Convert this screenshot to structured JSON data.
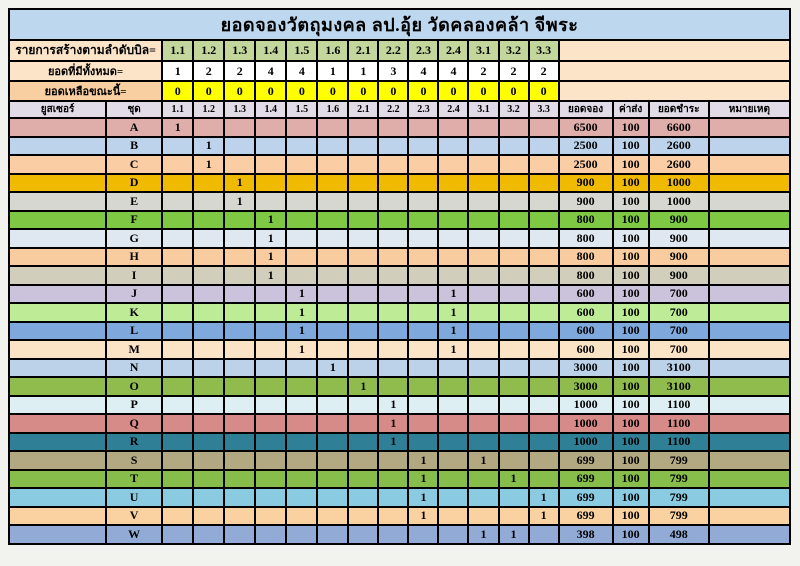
{
  "title": "ยอดจองวัตถุมงคล ลป.อุ้ย วัดคลองคล้า จีพระ",
  "summary": {
    "bill_order_label": "รายการสร้างตามลำดับบิล=",
    "bill_numbers": [
      "1.1",
      "1.2",
      "1.3",
      "1.4",
      "1.5",
      "1.6",
      "2.1",
      "2.2",
      "2.3",
      "2.4",
      "3.1",
      "3.2",
      "3.3"
    ],
    "stock_total_label": "ยอดที่มีทั้งหมด=",
    "stock_totals": [
      "1",
      "2",
      "2",
      "4",
      "4",
      "1",
      "1",
      "3",
      "4",
      "4",
      "2",
      "2",
      "2"
    ],
    "stock_remaining_label": "ยอดเหลือขณะนี้=",
    "stock_remaining": [
      "0",
      "0",
      "0",
      "0",
      "0",
      "0",
      "0",
      "0",
      "0",
      "0",
      "0",
      "0",
      "0"
    ]
  },
  "table": {
    "headers": {
      "user": "ยูสเซอร์",
      "set": "ชุด",
      "cols": [
        "1.1",
        "1.2",
        "1.3",
        "1.4",
        "1.5",
        "1.6",
        "2.1",
        "2.2",
        "2.3",
        "2.4",
        "3.1",
        "3.2",
        "3.3"
      ],
      "booked": "ยอดจอง",
      "shipping": "ค่าส่ง",
      "paid": "ยอดชำระ",
      "note": "หมายเหตุ"
    },
    "rows": [
      {
        "set": "A",
        "color": "#DFAEAA",
        "marks": [
          "1",
          "",
          "",
          "",
          "",
          "",
          "",
          "",
          "",
          "",
          "",
          "",
          ""
        ],
        "booked": "6500",
        "shipping": "100",
        "paid": "6600",
        "note": ""
      },
      {
        "set": "B",
        "color": "#BDD3EC",
        "marks": [
          "",
          "1",
          "",
          "",
          "",
          "",
          "",
          "",
          "",
          "",
          "",
          "",
          ""
        ],
        "booked": "2500",
        "shipping": "100",
        "paid": "2600",
        "note": ""
      },
      {
        "set": "C",
        "color": "#FACDA5",
        "marks": [
          "",
          "1",
          "",
          "",
          "",
          "",
          "",
          "",
          "",
          "",
          "",
          "",
          ""
        ],
        "booked": "2500",
        "shipping": "100",
        "paid": "2600",
        "note": ""
      },
      {
        "set": "D",
        "color": "#EFBA00",
        "marks": [
          "",
          "",
          "1",
          "",
          "",
          "",
          "",
          "",
          "",
          "",
          "",
          "",
          ""
        ],
        "booked": "900",
        "shipping": "100",
        "paid": "1000",
        "note": ""
      },
      {
        "set": "E",
        "color": "#D6D7D1",
        "marks": [
          "",
          "",
          "1",
          "",
          "",
          "",
          "",
          "",
          "",
          "",
          "",
          "",
          ""
        ],
        "booked": "900",
        "shipping": "100",
        "paid": "1000",
        "note": ""
      },
      {
        "set": "F",
        "color": "#7FC844",
        "marks": [
          "",
          "",
          "",
          "1",
          "",
          "",
          "",
          "",
          "",
          "",
          "",
          "",
          ""
        ],
        "booked": "800",
        "shipping": "100",
        "paid": "900",
        "note": ""
      },
      {
        "set": "G",
        "color": "#DFE7F0",
        "marks": [
          "",
          "",
          "",
          "1",
          "",
          "",
          "",
          "",
          "",
          "",
          "",
          "",
          ""
        ],
        "booked": "800",
        "shipping": "100",
        "paid": "900",
        "note": ""
      },
      {
        "set": "H",
        "color": "#F9CCA0",
        "marks": [
          "",
          "",
          "",
          "1",
          "",
          "",
          "",
          "",
          "",
          "",
          "",
          "",
          ""
        ],
        "booked": "800",
        "shipping": "100",
        "paid": "900",
        "note": ""
      },
      {
        "set": "I",
        "color": "#D1CEBB",
        "marks": [
          "",
          "",
          "",
          "1",
          "",
          "",
          "",
          "",
          "",
          "",
          "",
          "",
          ""
        ],
        "booked": "800",
        "shipping": "100",
        "paid": "900",
        "note": ""
      },
      {
        "set": "J",
        "color": "#CBC2DB",
        "marks": [
          "",
          "",
          "",
          "",
          "1",
          "",
          "",
          "",
          "",
          "1",
          "",
          "",
          ""
        ],
        "booked": "600",
        "shipping": "100",
        "paid": "700",
        "note": ""
      },
      {
        "set": "K",
        "color": "#BEEC96",
        "marks": [
          "",
          "",
          "",
          "",
          "1",
          "",
          "",
          "",
          "",
          "1",
          "",
          "",
          ""
        ],
        "booked": "600",
        "shipping": "100",
        "paid": "700",
        "note": ""
      },
      {
        "set": "L",
        "color": "#7FA9DC",
        "marks": [
          "",
          "",
          "",
          "",
          "1",
          "",
          "",
          "",
          "",
          "1",
          "",
          "",
          ""
        ],
        "booked": "600",
        "shipping": "100",
        "paid": "700",
        "note": ""
      },
      {
        "set": "M",
        "color": "#FBE3C6",
        "marks": [
          "",
          "",
          "",
          "",
          "1",
          "",
          "",
          "",
          "",
          "1",
          "",
          "",
          ""
        ],
        "booked": "600",
        "shipping": "100",
        "paid": "700",
        "note": ""
      },
      {
        "set": "N",
        "color": "#BCD2E8",
        "marks": [
          "",
          "",
          "",
          "",
          "",
          "1",
          "",
          "",
          "",
          "",
          "",
          "",
          ""
        ],
        "booked": "3000",
        "shipping": "100",
        "paid": "3100",
        "note": ""
      },
      {
        "set": "O",
        "color": "#90BC4E",
        "marks": [
          "",
          "",
          "",
          "",
          "",
          "",
          "1",
          "",
          "",
          "",
          "",
          "",
          ""
        ],
        "booked": "3000",
        "shipping": "100",
        "paid": "3100",
        "note": ""
      },
      {
        "set": "P",
        "color": "#DEEFF4",
        "marks": [
          "",
          "",
          "",
          "",
          "",
          "",
          "",
          "1",
          "",
          "",
          "",
          "",
          ""
        ],
        "booked": "1000",
        "shipping": "100",
        "paid": "1100",
        "note": ""
      },
      {
        "set": "Q",
        "color": "#D78B88",
        "marks": [
          "",
          "",
          "",
          "",
          "",
          "",
          "",
          "1",
          "",
          "",
          "",
          "",
          ""
        ],
        "booked": "1000",
        "shipping": "100",
        "paid": "1100",
        "note": ""
      },
      {
        "set": "R",
        "color": "#2F8096",
        "marks": [
          "",
          "",
          "",
          "",
          "",
          "",
          "",
          "1",
          "",
          "",
          "",
          "",
          ""
        ],
        "booked": "1000",
        "shipping": "100",
        "paid": "1100",
        "note": ""
      },
      {
        "set": "S",
        "color": "#B2A983",
        "marks": [
          "",
          "",
          "",
          "",
          "",
          "",
          "",
          "",
          "1",
          "",
          "1",
          "",
          ""
        ],
        "booked": "699",
        "shipping": "100",
        "paid": "799",
        "note": ""
      },
      {
        "set": "T",
        "color": "#87BD4A",
        "marks": [
          "",
          "",
          "",
          "",
          "",
          "",
          "",
          "",
          "1",
          "",
          "",
          "1",
          ""
        ],
        "booked": "699",
        "shipping": "100",
        "paid": "799",
        "note": ""
      },
      {
        "set": "U",
        "color": "#8BCBE2",
        "marks": [
          "",
          "",
          "",
          "",
          "",
          "",
          "",
          "",
          "1",
          "",
          "",
          "",
          "1"
        ],
        "booked": "699",
        "shipping": "100",
        "paid": "799",
        "note": ""
      },
      {
        "set": "V",
        "color": "#FAD2A2",
        "marks": [
          "",
          "",
          "",
          "",
          "",
          "",
          "",
          "",
          "1",
          "",
          "",
          "",
          "1"
        ],
        "booked": "699",
        "shipping": "100",
        "paid": "799",
        "note": ""
      },
      {
        "set": "W",
        "color": "#92ABD6",
        "marks": [
          "",
          "",
          "",
          "",
          "",
          "",
          "",
          "",
          "",
          "",
          "1",
          "1",
          ""
        ],
        "booked": "398",
        "shipping": "100",
        "paid": "498",
        "note": ""
      }
    ]
  },
  "colors": {
    "page_bg": "#F2F2EE",
    "grid": "#000000",
    "title_bg": "#BDD7EE",
    "label_bg": "#FBE4C8",
    "remaining_label_bg": "#F8CFA0",
    "bill_cell_bg": "#C3D69B",
    "total_cell_bg": "#FFFFFF",
    "remaining_cell_bg": "#FFFF00",
    "header_bg": "#E0DBE7",
    "text": "#000000"
  }
}
